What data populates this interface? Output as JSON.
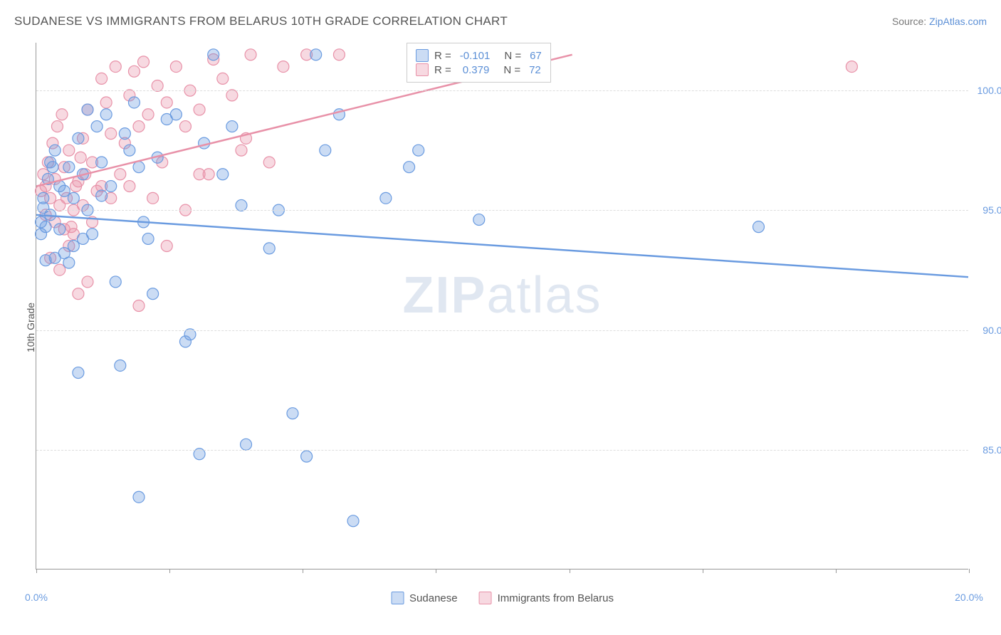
{
  "header": {
    "title": "SUDANESE VS IMMIGRANTS FROM BELARUS 10TH GRADE CORRELATION CHART",
    "source_prefix": "Source: ",
    "source_link": "ZipAtlas.com"
  },
  "y_axis_label": "10th Grade",
  "watermark": {
    "bold": "ZIP",
    "rest": "atlas"
  },
  "chart": {
    "type": "scatter",
    "xlim": [
      0,
      20
    ],
    "ylim": [
      80,
      102
    ],
    "x_ticks": [
      0,
      2.86,
      5.71,
      8.57,
      11.43,
      14.29,
      17.14,
      20
    ],
    "x_tick_labels": {
      "0": "0.0%",
      "20": "20.0%"
    },
    "y_gridlines": [
      85,
      90,
      95,
      100
    ],
    "y_tick_labels": {
      "85": "85.0%",
      "90": "90.0%",
      "95": "95.0%",
      "100": "100.0%"
    },
    "background_color": "#ffffff",
    "grid_color": "#dddddd",
    "axis_color": "#999999",
    "marker_radius": 8,
    "marker_fill_opacity": 0.35,
    "marker_stroke_width": 1.2
  },
  "series": {
    "sudanese": {
      "label": "Sudanese",
      "color": "#6a9be0",
      "fill": "rgba(106,155,224,0.35)",
      "R": "-0.101",
      "N": "67",
      "trend": {
        "x1": 0,
        "y1": 94.8,
        "x2": 20,
        "y2": 92.2
      },
      "points": [
        [
          0.1,
          94.5
        ],
        [
          0.2,
          94.3
        ],
        [
          0.15,
          95.1
        ],
        [
          0.3,
          97.0
        ],
        [
          0.4,
          97.5
        ],
        [
          0.5,
          96.0
        ],
        [
          0.6,
          93.2
        ],
        [
          0.7,
          92.8
        ],
        [
          0.8,
          95.5
        ],
        [
          0.9,
          98.0
        ],
        [
          1.0,
          96.5
        ],
        [
          1.1,
          95.0
        ],
        [
          1.2,
          94.0
        ],
        [
          1.3,
          98.5
        ],
        [
          1.4,
          97.0
        ],
        [
          1.5,
          99.0
        ],
        [
          1.6,
          96.0
        ],
        [
          1.7,
          92.0
        ],
        [
          1.8,
          88.5
        ],
        [
          2.0,
          97.5
        ],
        [
          2.1,
          99.5
        ],
        [
          2.2,
          96.8
        ],
        [
          2.3,
          94.5
        ],
        [
          2.5,
          91.5
        ],
        [
          2.6,
          97.2
        ],
        [
          2.8,
          98.8
        ],
        [
          3.0,
          99.0
        ],
        [
          3.2,
          89.5
        ],
        [
          3.3,
          89.8
        ],
        [
          3.5,
          84.8
        ],
        [
          3.6,
          97.8
        ],
        [
          3.8,
          101.5
        ],
        [
          4.0,
          96.5
        ],
        [
          4.2,
          98.5
        ],
        [
          4.4,
          95.2
        ],
        [
          4.5,
          85.2
        ],
        [
          5.0,
          93.4
        ],
        [
          5.2,
          95.0
        ],
        [
          5.5,
          86.5
        ],
        [
          5.8,
          84.7
        ],
        [
          6.0,
          101.5
        ],
        [
          6.2,
          97.5
        ],
        [
          6.5,
          99.0
        ],
        [
          6.8,
          82.0
        ],
        [
          7.5,
          95.5
        ],
        [
          8.0,
          96.8
        ],
        [
          8.2,
          97.5
        ],
        [
          9.5,
          94.6
        ],
        [
          15.5,
          94.3
        ],
        [
          0.3,
          94.8
        ],
        [
          0.5,
          94.2
        ],
        [
          0.8,
          93.5
        ],
        [
          1.0,
          93.8
        ],
        [
          0.2,
          92.9
        ],
        [
          0.6,
          95.8
        ],
        [
          1.4,
          95.6
        ],
        [
          0.9,
          88.2
        ],
        [
          2.2,
          83.0
        ],
        [
          0.1,
          94.0
        ],
        [
          0.25,
          96.3
        ],
        [
          0.7,
          96.8
        ],
        [
          1.1,
          99.2
        ],
        [
          1.9,
          98.2
        ],
        [
          2.4,
          93.8
        ],
        [
          0.4,
          93.0
        ],
        [
          0.15,
          95.5
        ],
        [
          0.35,
          96.8
        ]
      ]
    },
    "belarus": {
      "label": "Immigrants from Belarus",
      "color": "#e891a8",
      "fill": "rgba(232,145,168,0.35)",
      "R": "0.379",
      "N": "72",
      "trend": {
        "x1": 0,
        "y1": 96.0,
        "x2": 11.5,
        "y2": 101.5
      },
      "points": [
        [
          0.1,
          95.8
        ],
        [
          0.2,
          96.0
        ],
        [
          0.3,
          95.5
        ],
        [
          0.4,
          96.3
        ],
        [
          0.5,
          95.2
        ],
        [
          0.6,
          96.8
        ],
        [
          0.7,
          97.5
        ],
        [
          0.8,
          95.0
        ],
        [
          0.9,
          96.2
        ],
        [
          1.0,
          98.0
        ],
        [
          1.1,
          99.2
        ],
        [
          1.2,
          97.0
        ],
        [
          1.3,
          95.8
        ],
        [
          1.4,
          100.5
        ],
        [
          1.5,
          99.5
        ],
        [
          1.6,
          98.2
        ],
        [
          1.7,
          101.0
        ],
        [
          1.8,
          96.5
        ],
        [
          1.9,
          97.8
        ],
        [
          2.0,
          99.8
        ],
        [
          2.1,
          100.8
        ],
        [
          2.2,
          98.5
        ],
        [
          2.3,
          101.2
        ],
        [
          2.4,
          99.0
        ],
        [
          2.5,
          95.5
        ],
        [
          2.6,
          100.2
        ],
        [
          2.7,
          97.0
        ],
        [
          2.8,
          99.5
        ],
        [
          3.0,
          101.0
        ],
        [
          3.2,
          98.5
        ],
        [
          3.3,
          100.0
        ],
        [
          3.5,
          99.2
        ],
        [
          3.7,
          96.5
        ],
        [
          3.8,
          101.3
        ],
        [
          4.0,
          100.5
        ],
        [
          4.2,
          99.8
        ],
        [
          4.4,
          97.5
        ],
        [
          4.6,
          101.5
        ],
        [
          5.0,
          97.0
        ],
        [
          5.3,
          101.0
        ],
        [
          5.8,
          101.5
        ],
        [
          6.5,
          101.5
        ],
        [
          17.5,
          101.0
        ],
        [
          0.2,
          94.8
        ],
        [
          0.4,
          94.5
        ],
        [
          0.6,
          94.2
        ],
        [
          0.8,
          94.0
        ],
        [
          1.0,
          95.2
        ],
        [
          1.2,
          94.5
        ],
        [
          0.3,
          93.0
        ],
        [
          0.5,
          92.5
        ],
        [
          0.7,
          93.5
        ],
        [
          0.9,
          91.5
        ],
        [
          1.1,
          92.0
        ],
        [
          1.4,
          96.0
        ],
        [
          1.6,
          95.5
        ],
        [
          2.0,
          96.0
        ],
        [
          2.2,
          91.0
        ],
        [
          2.8,
          93.5
        ],
        [
          3.2,
          95.0
        ],
        [
          3.5,
          96.5
        ],
        [
          4.5,
          98.0
        ],
        [
          0.15,
          96.5
        ],
        [
          0.25,
          97.0
        ],
        [
          0.35,
          97.8
        ],
        [
          0.45,
          98.5
        ],
        [
          0.55,
          99.0
        ],
        [
          0.65,
          95.5
        ],
        [
          0.75,
          94.3
        ],
        [
          0.85,
          96.0
        ],
        [
          0.95,
          97.2
        ],
        [
          1.05,
          96.5
        ]
      ]
    }
  },
  "stat_box": {
    "R_label": "R =",
    "N_label": "N ="
  },
  "legend": {
    "sudanese": "Sudanese",
    "belarus": "Immigrants from Belarus"
  }
}
